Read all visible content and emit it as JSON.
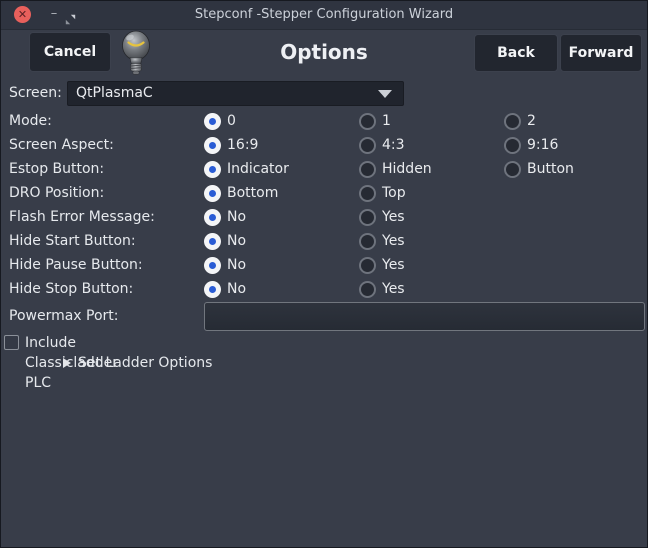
{
  "window": {
    "title": "Stepconf -Stepper Configuration Wizard",
    "minimize_glyph": "–",
    "close_glyph": "✕"
  },
  "header": {
    "cancel_label": "Cancel",
    "title": "Options",
    "back_label": "Back",
    "forward_label": "Forward"
  },
  "form": {
    "screen": {
      "label": "Screen:",
      "value": "QtPlasmaC"
    },
    "radio_rows": [
      {
        "label": "Mode:",
        "options": [
          {
            "label": "0",
            "selected": true
          },
          {
            "label": "1",
            "selected": false
          },
          {
            "label": "2",
            "selected": false
          }
        ]
      },
      {
        "label": "Screen Aspect:",
        "options": [
          {
            "label": "16:9",
            "selected": true
          },
          {
            "label": "4:3",
            "selected": false
          },
          {
            "label": "9:16",
            "selected": false
          }
        ]
      },
      {
        "label": "Estop Button:",
        "options": [
          {
            "label": "Indicator",
            "selected": true
          },
          {
            "label": "Hidden",
            "selected": false
          },
          {
            "label": "Button",
            "selected": false
          }
        ]
      },
      {
        "label": "DRO Position:",
        "options": [
          {
            "label": "Bottom",
            "selected": true
          },
          {
            "label": "Top",
            "selected": false
          }
        ]
      },
      {
        "label": "Flash Error Message:",
        "options": [
          {
            "label": "No",
            "selected": true
          },
          {
            "label": "Yes",
            "selected": false
          }
        ]
      },
      {
        "label": "Hide Start Button:",
        "options": [
          {
            "label": "No",
            "selected": true
          },
          {
            "label": "Yes",
            "selected": false
          }
        ]
      },
      {
        "label": "Hide Pause Button:",
        "options": [
          {
            "label": "No",
            "selected": true
          },
          {
            "label": "Yes",
            "selected": false
          }
        ]
      },
      {
        "label": "Hide Stop Button:",
        "options": [
          {
            "label": "No",
            "selected": true
          },
          {
            "label": "Yes",
            "selected": false
          }
        ]
      }
    ],
    "powermax": {
      "label": "Powermax Port:",
      "value": ""
    },
    "classicladder": {
      "label": "Include Classicladder PLC",
      "checked": false
    },
    "ladder_options": {
      "label": "Set Ladder Options"
    }
  },
  "colors": {
    "titlebar_bg": "#2f3440",
    "window_bg": "#383d49",
    "button_bg": "#22262f",
    "accent_blue": "#2a5cd5",
    "close_red": "#e8605c",
    "text": "#e6e9ed"
  }
}
